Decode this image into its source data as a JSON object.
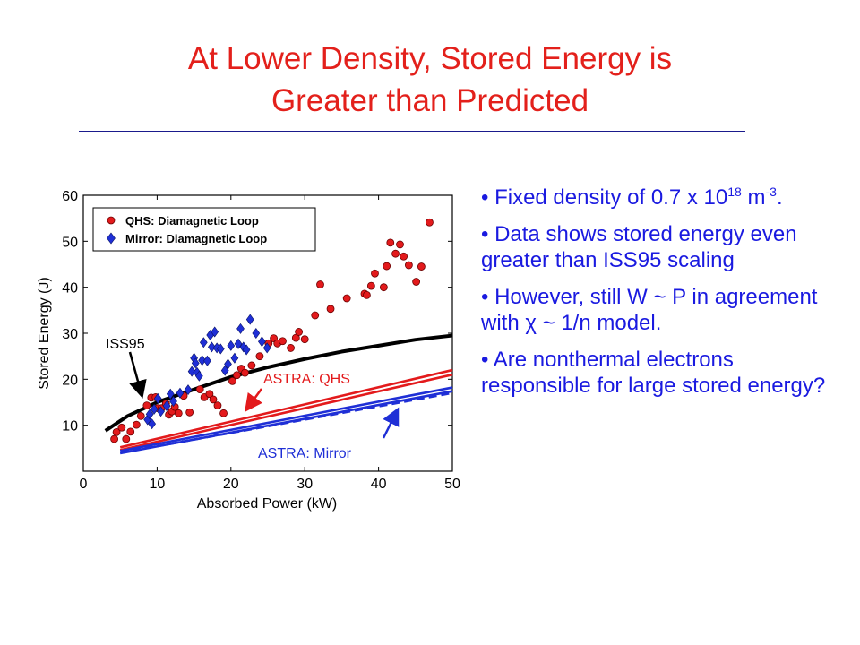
{
  "slide": {
    "title_line1": "At Lower Density, Stored Energy is",
    "title_line2": "Greater than Predicted",
    "bullets": [
      {
        "pre": "Fixed density of 0.7 x 10",
        "sup1": "18",
        "mid": " m",
        "sup2": "-3",
        "post": "."
      },
      {
        "text": "Data shows stored energy even greater than ISS95 scaling"
      },
      {
        "pre": "However, still W ~ P in agreement with ",
        "chi": "χ",
        "post": " ~ 1/n model."
      },
      {
        "text": "Are nonthermal electrons responsible for large stored energy?"
      }
    ],
    "colors": {
      "title": "#e3201b",
      "bullets": "#1a1ae0",
      "qhs": "#e31a1c",
      "mirror": "#1f2fd6",
      "iss95": "#000000"
    }
  },
  "chart_data": {
    "type": "scatter",
    "xlabel": "Absorbed Power (kW)",
    "ylabel": "Stored Energy (J)",
    "xlim": [
      0,
      50
    ],
    "ylim": [
      0,
      60
    ],
    "xticks": [
      0,
      10,
      20,
      30,
      40,
      50
    ],
    "yticks": [
      10,
      20,
      30,
      40,
      50,
      60
    ],
    "legend_position": "top-left",
    "series": [
      {
        "name": "QHS: Diamagnetic Loop",
        "kind": "points",
        "marker": "circle",
        "color": "#e31a1c",
        "x": [
          4.2,
          4.5,
          5.2,
          5.8,
          6.4,
          7.2,
          7.8,
          8.6,
          9.2,
          9.8,
          10.1,
          10.6,
          11.2,
          11.6,
          12.0,
          12.4,
          12.9,
          13.6,
          14.4,
          15.8,
          16.4,
          17.1,
          17.6,
          18.2,
          19.0,
          20.2,
          20.8,
          21.4,
          21.9,
          22.8,
          23.9,
          25.1,
          25.8,
          26.3,
          27.0,
          28.1,
          28.8,
          29.2,
          30.0,
          31.4,
          32.1,
          33.5,
          35.7,
          38.1,
          38.4,
          39.0,
          39.5,
          40.7,
          41.1,
          41.6,
          42.3,
          42.9,
          43.4,
          44.1,
          45.1,
          45.8,
          46.9
        ],
        "y": [
          7.0,
          8.5,
          9.5,
          7.0,
          8.6,
          10.1,
          12.0,
          14.3,
          16.0,
          16.1,
          13.7,
          13.7,
          14.7,
          12.3,
          13.0,
          14.0,
          12.6,
          16.4,
          12.8,
          17.8,
          16.1,
          16.8,
          15.6,
          14.3,
          12.6,
          19.6,
          20.9,
          22.3,
          21.4,
          23.0,
          25.0,
          27.8,
          28.9,
          27.8,
          28.3,
          26.8,
          29.0,
          30.3,
          28.7,
          33.9,
          40.6,
          35.3,
          37.6,
          38.6,
          38.3,
          40.3,
          43.0,
          40.0,
          44.6,
          49.7,
          47.3,
          49.3,
          46.7,
          44.8,
          41.2,
          44.5,
          54.1
        ],
        "note_a": "array lengths reflect visible markers",
        "note_b": ""
      },
      {
        "name": "Mirror: Diamagnetic Loop",
        "kind": "points",
        "marker": "diamond",
        "color": "#1f2fd6",
        "x": [
          8.7,
          9.0,
          9.3,
          9.6,
          10.1,
          10.5,
          11.3,
          11.8,
          12.2,
          13.1,
          14.2,
          14.7,
          15.0,
          15.2,
          15.4,
          15.7,
          16.1,
          16.3,
          16.8,
          17.2,
          17.4,
          17.8,
          18.1,
          18.6,
          19.2,
          19.6,
          20.0,
          20.5,
          21.0,
          21.3,
          21.7,
          22.1,
          22.6,
          23.4,
          24.2,
          24.9
        ],
        "y": [
          11.2,
          12.4,
          10.3,
          13.5,
          15.8,
          13.0,
          14.2,
          16.8,
          15.2,
          17.0,
          17.7,
          21.7,
          24.6,
          23.5,
          21.5,
          20.7,
          24.1,
          28.0,
          24.0,
          29.6,
          27.0,
          30.3,
          26.8,
          26.6,
          21.9,
          23.3,
          27.3,
          24.6,
          27.7,
          31.0,
          27.0,
          26.4,
          33.0,
          30.0,
          28.2,
          26.8
        ]
      },
      {
        "name": "ISS95",
        "kind": "line",
        "color": "#000000",
        "x": [
          3,
          6,
          10,
          15,
          20,
          25,
          30,
          35,
          40,
          45,
          50
        ],
        "y": [
          8.8,
          12.0,
          15.0,
          17.8,
          20.5,
          22.6,
          24.4,
          26.0,
          27.3,
          28.6,
          29.5
        ]
      },
      {
        "name": "ASTRA: QHS",
        "kind": "line",
        "color": "#e31a1c",
        "x": [
          5,
          50
        ],
        "y": [
          5.2,
          22.0
        ]
      },
      {
        "name": "ASTRA: QHS",
        "kind": "line",
        "color": "#e31a1c",
        "x": [
          5,
          50
        ],
        "y": [
          4.6,
          21.0
        ]
      },
      {
        "name": "ASTRA: Mirror",
        "kind": "line",
        "color": "#1f2fd6",
        "x": [
          5,
          50
        ],
        "y": [
          4.4,
          18.2
        ]
      },
      {
        "name": "ASTRA: Mirror",
        "kind": "line",
        "color": "#1f2fd6",
        "x": [
          5,
          50
        ],
        "y": [
          3.9,
          17.4
        ]
      },
      {
        "name": "ASTRA: Mirror",
        "kind": "line",
        "color": "#1f2fd6",
        "dashed": true,
        "x": [
          5,
          50
        ],
        "y": [
          4.0,
          17.0
        ]
      }
    ],
    "legend": [
      "QHS: Diamagnetic Loop",
      "Mirror: Diamagnetic Loop"
    ],
    "annotations": [
      {
        "text": "ISS95",
        "color": "#000000"
      },
      {
        "text": "ASTRA: QHS",
        "color": "#e31a1c"
      },
      {
        "text": "ASTRA: Mirror",
        "color": "#1f2fd6"
      }
    ]
  }
}
